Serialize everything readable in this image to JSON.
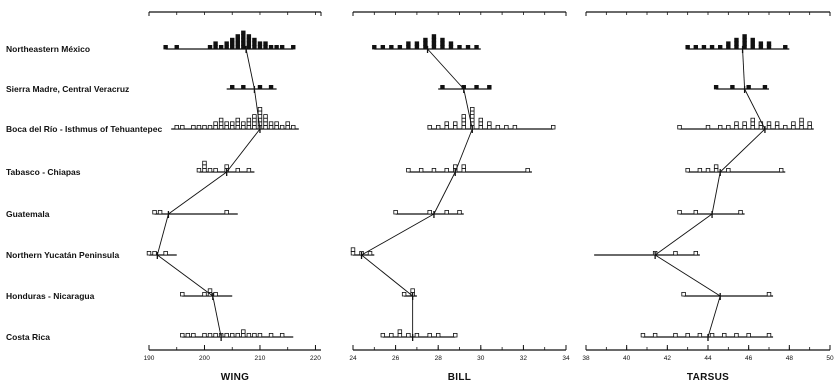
{
  "chart_data": {
    "type": "histogram-range",
    "regions": [
      "Northeastern México",
      "Sierra Madre, Central Veracruz",
      "Boca del Río - Isthmus of Tehuantepec",
      "Tabasco - Chiapas",
      "Guatemala",
      "Northern Yucatán Peninsula",
      "Honduras - Nicaragua",
      "Costa Rica"
    ],
    "panels": [
      {
        "title": "WING",
        "ticks": [
          190,
          200,
          210,
          220
        ],
        "tick_labels": [
          "190",
          "200",
          "210",
          "220"
        ],
        "xlim": [
          190,
          221
        ],
        "rows": [
          {
            "min": 193,
            "max": 216,
            "mean": 207.5,
            "filled": true,
            "bins": [
              [
                193,
                1
              ],
              [
                195,
                1
              ],
              [
                201,
                1
              ],
              [
                202,
                2
              ],
              [
                203,
                1
              ],
              [
                204,
                2
              ],
              [
                205,
                3
              ],
              [
                206,
                4
              ],
              [
                207,
                5
              ],
              [
                208,
                4
              ],
              [
                209,
                3
              ],
              [
                210,
                2
              ],
              [
                211,
                2
              ],
              [
                212,
                1
              ],
              [
                213,
                1
              ],
              [
                214,
                1
              ],
              [
                216,
                1
              ]
            ]
          },
          {
            "min": 204,
            "max": 213,
            "mean": 209,
            "filled": true,
            "bins": [
              [
                205,
                1
              ],
              [
                207,
                1
              ],
              [
                210,
                1
              ],
              [
                212,
                1
              ]
            ]
          },
          {
            "min": 194,
            "max": 217,
            "mean": 210,
            "filled": false,
            "bins": [
              [
                195,
                1
              ],
              [
                196,
                1
              ],
              [
                198,
                1
              ],
              [
                199,
                1
              ],
              [
                200,
                1
              ],
              [
                201,
                1
              ],
              [
                202,
                2
              ],
              [
                203,
                3
              ],
              [
                204,
                2
              ],
              [
                205,
                2
              ],
              [
                206,
                3
              ],
              [
                207,
                2
              ],
              [
                208,
                3
              ],
              [
                209,
                4
              ],
              [
                210,
                6
              ],
              [
                211,
                4
              ],
              [
                212,
                2
              ],
              [
                213,
                2
              ],
              [
                214,
                1
              ],
              [
                215,
                2
              ],
              [
                216,
                1
              ]
            ]
          },
          {
            "min": 199,
            "max": 209,
            "mean": 204,
            "filled": false,
            "bins": [
              [
                199,
                1
              ],
              [
                200,
                3
              ],
              [
                201,
                1
              ],
              [
                202,
                1
              ],
              [
                204,
                2
              ],
              [
                206,
                1
              ],
              [
                208,
                1
              ]
            ]
          },
          {
            "min": 191,
            "max": 206,
            "mean": 193.5,
            "filled": false,
            "bins": [
              [
                191,
                1
              ],
              [
                192,
                1
              ],
              [
                204,
                1
              ]
            ]
          },
          {
            "min": 190,
            "max": 195,
            "mean": 191.5,
            "filled": false,
            "bins": [
              [
                190,
                1
              ],
              [
                191,
                1
              ],
              [
                193,
                1
              ]
            ]
          },
          {
            "min": 196,
            "max": 205,
            "mean": 201.5,
            "filled": false,
            "bins": [
              [
                196,
                1
              ],
              [
                200,
                1
              ],
              [
                201,
                2
              ],
              [
                202,
                1
              ]
            ]
          },
          {
            "min": 196,
            "max": 216,
            "mean": 203,
            "filled": false,
            "bins": [
              [
                196,
                1
              ],
              [
                197,
                1
              ],
              [
                198,
                1
              ],
              [
                200,
                1
              ],
              [
                201,
                1
              ],
              [
                202,
                1
              ],
              [
                203,
                1
              ],
              [
                204,
                1
              ],
              [
                205,
                1
              ],
              [
                206,
                1
              ],
              [
                207,
                2
              ],
              [
                208,
                1
              ],
              [
                209,
                1
              ],
              [
                210,
                1
              ],
              [
                212,
                1
              ],
              [
                214,
                1
              ]
            ]
          }
        ]
      },
      {
        "title": "BILL",
        "ticks": [
          24,
          26,
          28,
          30,
          32,
          34
        ],
        "tick_labels": [
          "24",
          "26",
          "28",
          "30",
          "32",
          "34"
        ],
        "xlim": [
          24,
          34
        ],
        "rows": [
          {
            "min": 25,
            "max": 30,
            "mean": 27.5,
            "filled": true,
            "bins": [
              [
                25.0,
                1
              ],
              [
                25.4,
                1
              ],
              [
                25.8,
                1
              ],
              [
                26.2,
                1
              ],
              [
                26.6,
                2
              ],
              [
                27.0,
                2
              ],
              [
                27.4,
                3
              ],
              [
                27.8,
                4
              ],
              [
                28.2,
                3
              ],
              [
                28.6,
                2
              ],
              [
                29.0,
                1
              ],
              [
                29.4,
                1
              ],
              [
                29.8,
                1
              ]
            ]
          },
          {
            "min": 28,
            "max": 30.5,
            "mean": 29.2,
            "filled": true,
            "bins": [
              [
                28.2,
                1
              ],
              [
                29.2,
                1
              ],
              [
                29.8,
                1
              ],
              [
                30.4,
                1
              ]
            ]
          },
          {
            "min": 27.5,
            "max": 33.4,
            "mean": 29.6,
            "filled": false,
            "bins": [
              [
                27.6,
                1
              ],
              [
                28.0,
                1
              ],
              [
                28.4,
                2
              ],
              [
                28.8,
                2
              ],
              [
                29.2,
                4
              ],
              [
                29.6,
                6
              ],
              [
                30.0,
                3
              ],
              [
                30.4,
                2
              ],
              [
                30.8,
                1
              ],
              [
                31.2,
                1
              ],
              [
                31.6,
                1
              ],
              [
                33.4,
                1
              ]
            ]
          },
          {
            "min": 26.6,
            "max": 32.4,
            "mean": 28.8,
            "filled": false,
            "bins": [
              [
                26.6,
                1
              ],
              [
                27.2,
                1
              ],
              [
                27.8,
                1
              ],
              [
                28.4,
                1
              ],
              [
                28.8,
                2
              ],
              [
                29.2,
                2
              ],
              [
                32.2,
                1
              ]
            ]
          },
          {
            "min": 26,
            "max": 29.2,
            "mean": 27.8,
            "filled": false,
            "bins": [
              [
                26.0,
                1
              ],
              [
                27.6,
                1
              ],
              [
                28.4,
                1
              ],
              [
                29.0,
                1
              ]
            ]
          },
          {
            "min": 24,
            "max": 25,
            "mean": 24.4,
            "filled": false,
            "bins": [
              [
                24.0,
                2
              ],
              [
                24.4,
                1
              ],
              [
                24.8,
                1
              ]
            ]
          },
          {
            "min": 26.4,
            "max": 27,
            "mean": 26.8,
            "filled": false,
            "bins": [
              [
                26.4,
                1
              ],
              [
                26.8,
                2
              ]
            ]
          },
          {
            "min": 25.4,
            "max": 28.8,
            "mean": 26.8,
            "filled": false,
            "bins": [
              [
                25.4,
                1
              ],
              [
                25.8,
                1
              ],
              [
                26.2,
                2
              ],
              [
                26.6,
                1
              ],
              [
                27.0,
                1
              ],
              [
                27.6,
                1
              ],
              [
                28.0,
                1
              ],
              [
                28.8,
                1
              ]
            ]
          }
        ]
      },
      {
        "title": "TARSUS",
        "ticks": [
          38,
          40,
          42,
          44,
          46,
          48,
          50
        ],
        "tick_labels": [
          "38",
          "40",
          "42",
          "44",
          "46",
          "48",
          "50"
        ],
        "xlim": [
          38,
          50
        ],
        "rows": [
          {
            "min": 43,
            "max": 48,
            "mean": 45.7,
            "filled": true,
            "bins": [
              [
                43.0,
                1
              ],
              [
                43.4,
                1
              ],
              [
                43.8,
                1
              ],
              [
                44.2,
                1
              ],
              [
                44.6,
                1
              ],
              [
                45.0,
                2
              ],
              [
                45.4,
                3
              ],
              [
                45.8,
                4
              ],
              [
                46.2,
                3
              ],
              [
                46.6,
                2
              ],
              [
                47.0,
                2
              ],
              [
                47.8,
                1
              ]
            ]
          },
          {
            "min": 44.4,
            "max": 47,
            "mean": 45.8,
            "filled": true,
            "bins": [
              [
                44.4,
                1
              ],
              [
                45.2,
                1
              ],
              [
                46.0,
                1
              ],
              [
                46.8,
                1
              ]
            ]
          },
          {
            "min": 42.6,
            "max": 49.2,
            "mean": 46.8,
            "filled": false,
            "bins": [
              [
                42.6,
                1
              ],
              [
                44.0,
                1
              ],
              [
                44.6,
                1
              ],
              [
                45.0,
                1
              ],
              [
                45.4,
                2
              ],
              [
                45.8,
                2
              ],
              [
                46.2,
                3
              ],
              [
                46.6,
                2
              ],
              [
                47.0,
                2
              ],
              [
                47.4,
                2
              ],
              [
                47.8,
                1
              ],
              [
                48.2,
                2
              ],
              [
                48.6,
                3
              ],
              [
                49.0,
                2
              ]
            ]
          },
          {
            "min": 43,
            "max": 47.8,
            "mean": 44.6,
            "filled": false,
            "bins": [
              [
                43.0,
                1
              ],
              [
                43.6,
                1
              ],
              [
                44.0,
                1
              ],
              [
                44.4,
                2
              ],
              [
                45.0,
                1
              ],
              [
                47.6,
                1
              ]
            ]
          },
          {
            "min": 42.6,
            "max": 45.8,
            "mean": 44.2,
            "filled": false,
            "bins": [
              [
                42.6,
                1
              ],
              [
                43.4,
                1
              ],
              [
                45.6,
                1
              ]
            ]
          },
          {
            "min": 38.4,
            "max": 43.6,
            "mean": 41.4,
            "filled": false,
            "bins": [
              [
                41.4,
                1
              ],
              [
                42.4,
                1
              ],
              [
                43.4,
                1
              ]
            ]
          },
          {
            "min": 42.8,
            "max": 47.2,
            "mean": 44.6,
            "filled": false,
            "bins": [
              [
                42.8,
                1
              ],
              [
                47.0,
                1
              ]
            ]
          },
          {
            "min": 40.8,
            "max": 47.2,
            "mean": 44.0,
            "filled": false,
            "bins": [
              [
                40.8,
                1
              ],
              [
                41.4,
                1
              ],
              [
                42.4,
                1
              ],
              [
                43.0,
                1
              ],
              [
                43.6,
                1
              ],
              [
                44.2,
                1
              ],
              [
                44.8,
                1
              ],
              [
                45.4,
                1
              ],
              [
                46.0,
                1
              ],
              [
                47.0,
                1
              ]
            ]
          }
        ]
      }
    ]
  }
}
